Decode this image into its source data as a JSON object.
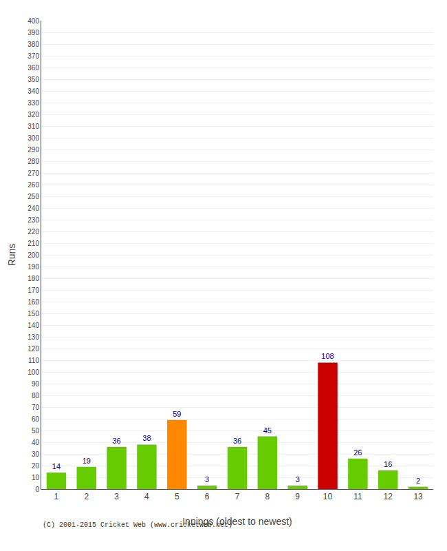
{
  "chart_data": {
    "type": "bar",
    "xlabel": "Innings (oldest to newest)",
    "ylabel": "Runs",
    "categories": [
      1,
      2,
      3,
      4,
      5,
      6,
      7,
      8,
      9,
      10,
      11,
      12,
      13
    ],
    "values": [
      14,
      19,
      36,
      38,
      59,
      3,
      36,
      45,
      3,
      108,
      26,
      16,
      2
    ],
    "colors": [
      "#66cc00",
      "#66cc00",
      "#66cc00",
      "#66cc00",
      "#ff8800",
      "#66cc00",
      "#66cc00",
      "#66cc00",
      "#66cc00",
      "#cc0000",
      "#66cc00",
      "#66cc00",
      "#66cc00"
    ],
    "ylim": [
      0,
      400
    ],
    "yticks": [
      0,
      10,
      20,
      30,
      40,
      50,
      60,
      70,
      80,
      90,
      100,
      110,
      120,
      130,
      140,
      150,
      160,
      170,
      180,
      190,
      200,
      210,
      220,
      230,
      240,
      250,
      260,
      270,
      280,
      290,
      300,
      310,
      320,
      330,
      340,
      350,
      360,
      370,
      380,
      390,
      400
    ],
    "grid": true,
    "data_labels": true,
    "annotations": [
      "(C) 2001-2015 Cricket Web (www.cricketweb.net)"
    ]
  }
}
